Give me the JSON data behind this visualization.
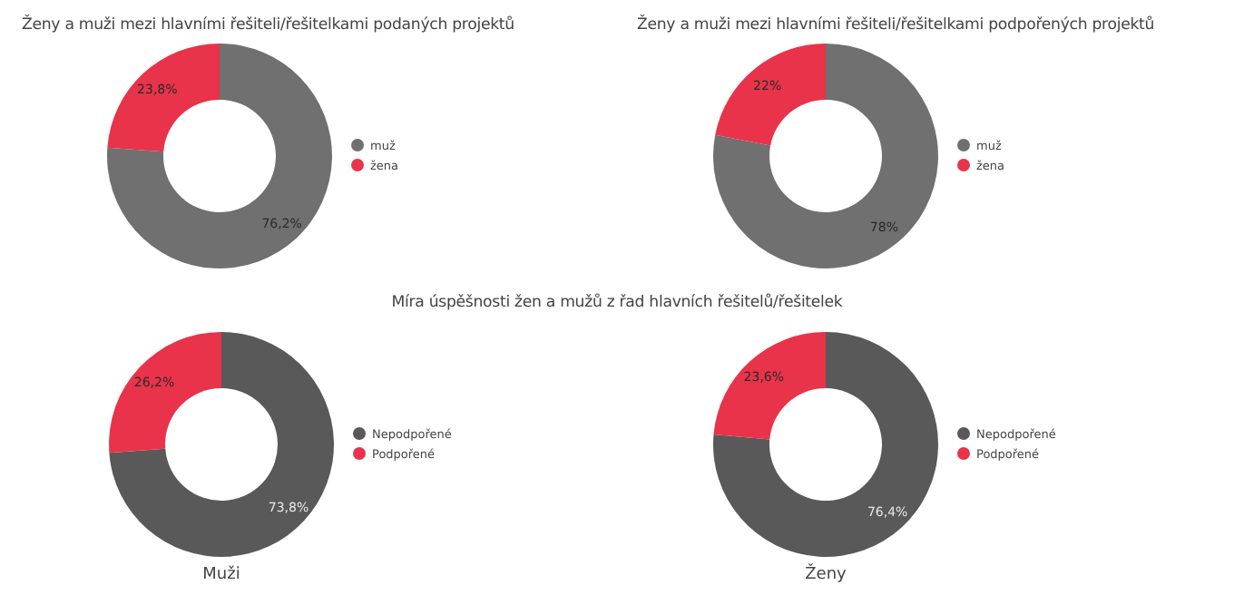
{
  "chart_data": [
    {
      "type": "donut",
      "title": "Ženy a muži mezi hlavními řešiteli/řešitelkami podaných projektů",
      "categories": [
        "muž",
        "žena"
      ],
      "values": [
        76.2,
        23.8
      ],
      "value_labels": [
        "76,2%",
        "23,8%"
      ],
      "colors": [
        "#707070",
        "#e8334a"
      ],
      "legend": "right"
    },
    {
      "type": "donut",
      "title": "Ženy a muži mezi hlavními řešiteli/řešitelkami podpořených projektů",
      "categories": [
        "muž",
        "žena"
      ],
      "values": [
        78,
        22
      ],
      "value_labels": [
        "78%",
        "22%"
      ],
      "colors": [
        "#707070",
        "#e8334a"
      ],
      "legend": "right"
    },
    {
      "type": "donut",
      "title": "Míra úspěšnosti žen a mužů z řad hlavních řešitelů/řešitelek",
      "xlabel": "Muži",
      "categories": [
        "Nepodpořené",
        "Podpořené"
      ],
      "values": [
        73.8,
        26.2
      ],
      "value_labels": [
        "73,8%",
        "26,2%"
      ],
      "colors": [
        "#595959",
        "#e8334a"
      ],
      "legend": "right"
    },
    {
      "type": "donut",
      "xlabel": "Ženy",
      "categories": [
        "Nepodpořené",
        "Podpořené"
      ],
      "values": [
        76.4,
        23.6
      ],
      "value_labels": [
        "76,4%",
        "23,6%"
      ],
      "colors": [
        "#595959",
        "#e8334a"
      ],
      "legend": "right"
    }
  ]
}
